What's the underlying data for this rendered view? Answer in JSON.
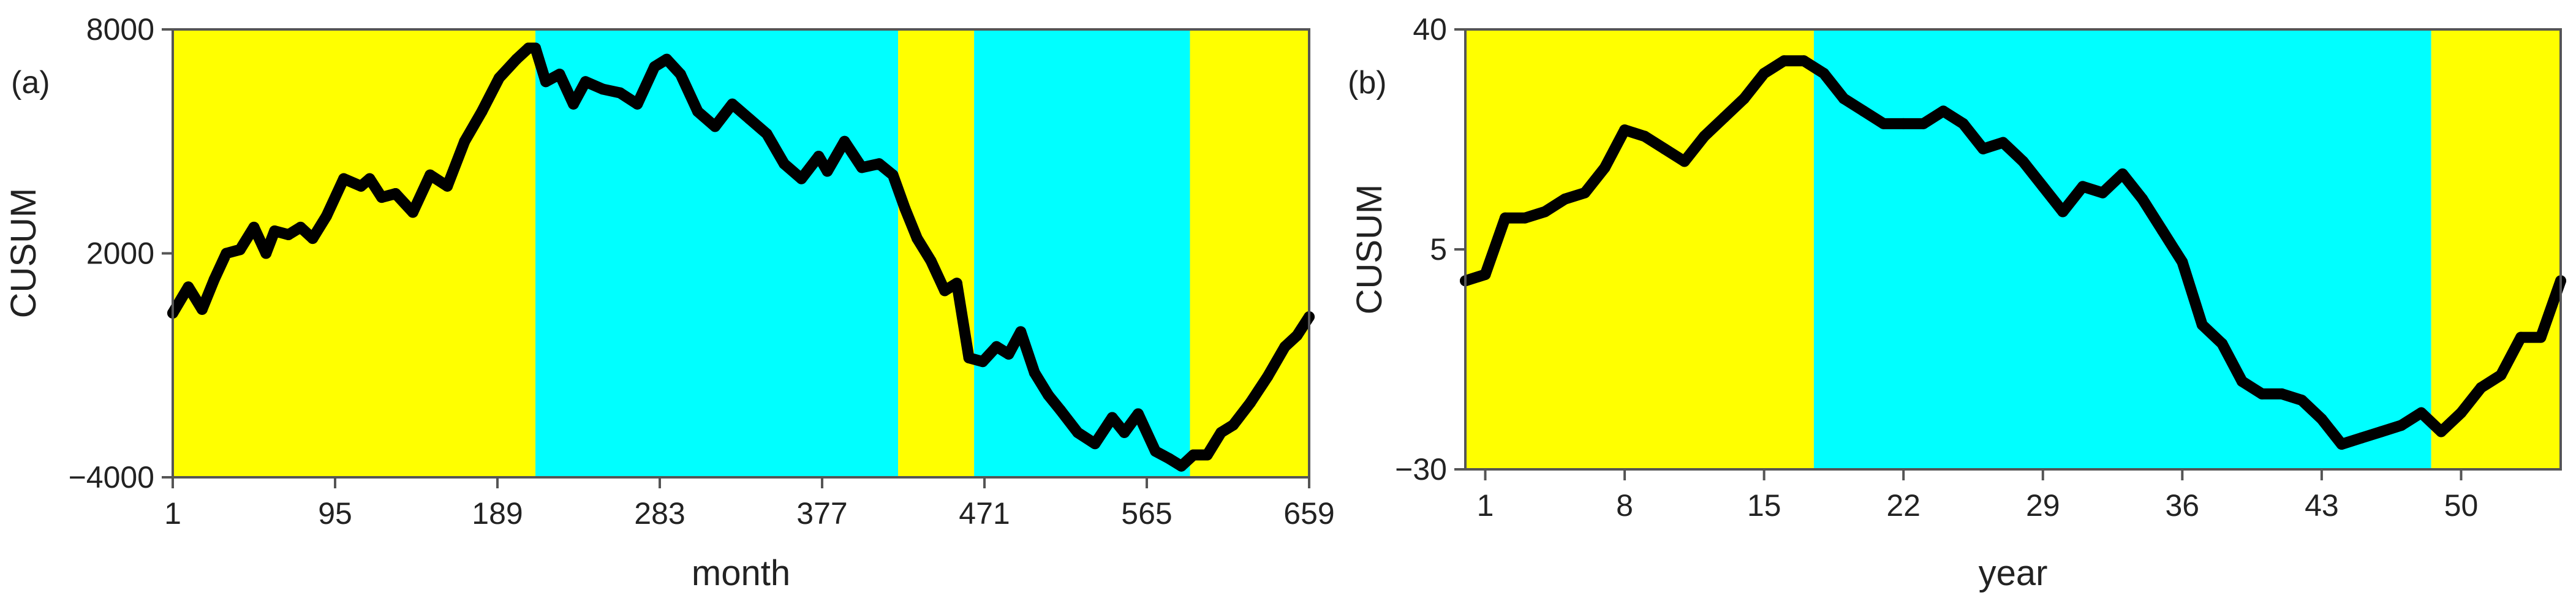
{
  "colors": {
    "yellow": "#ffff00",
    "cyan": "#00ffff",
    "line": "#000000",
    "frame": "#555555"
  },
  "chart_data": [
    {
      "type": "line",
      "panel_label": "(a)",
      "title": "",
      "xlabel": "month",
      "ylabel": "CUSUM",
      "xlim": [
        1,
        659
      ],
      "ylim": [
        -4000,
        8000
      ],
      "xticks": [
        1,
        95,
        189,
        283,
        377,
        471,
        565,
        659
      ],
      "yticks": [
        -4000,
        2000,
        8000
      ],
      "grid": false,
      "regimes": [
        {
          "start": 1,
          "end": 211,
          "color": "yellow"
        },
        {
          "start": 211,
          "end": 421,
          "color": "cyan"
        },
        {
          "start": 421,
          "end": 465,
          "color": "yellow"
        },
        {
          "start": 465,
          "end": 590,
          "color": "cyan"
        },
        {
          "start": 590,
          "end": 659,
          "color": "yellow"
        }
      ],
      "series": [
        {
          "x": [
            1,
            10,
            18,
            25,
            32,
            40,
            48,
            55,
            60,
            68,
            75,
            82,
            90,
            100,
            110,
            115,
            122,
            130,
            140,
            150,
            160,
            170,
            180,
            190,
            200,
            207,
            211,
            217,
            225,
            233,
            240,
            250,
            260,
            270,
            280,
            287,
            295,
            305,
            315,
            325,
            335,
            345,
            355,
            365,
            375,
            380,
            390,
            400,
            410,
            418,
            425,
            432,
            440,
            448,
            455,
            462,
            470,
            478,
            485,
            492,
            500,
            508,
            515,
            525,
            535,
            545,
            552,
            560,
            570,
            578,
            585,
            592,
            600,
            608,
            615,
            625,
            635,
            645,
            652,
            659
          ],
          "values": [
            400,
            1100,
            500,
            1300,
            2000,
            2100,
            2700,
            2000,
            2600,
            2500,
            2700,
            2400,
            3000,
            4000,
            3800,
            4000,
            3500,
            3600,
            3100,
            4100,
            3800,
            5000,
            5800,
            6700,
            7200,
            7500,
            7500,
            6600,
            6800,
            6000,
            6600,
            6400,
            6300,
            6000,
            7000,
            7200,
            6800,
            5800,
            5400,
            6000,
            5600,
            5200,
            4400,
            4000,
            4600,
            4200,
            5000,
            4300,
            4400,
            4100,
            3200,
            2400,
            1800,
            1000,
            1200,
            -800,
            -900,
            -500,
            -700,
            -100,
            -1200,
            -1800,
            -2200,
            -2800,
            -3100,
            -2400,
            -2800,
            -2300,
            -3300,
            -3500,
            -3700,
            -3400,
            -3400,
            -2800,
            -2600,
            -2000,
            -1300,
            -500,
            -200,
            300
          ]
        }
      ]
    },
    {
      "type": "line",
      "panel_label": "(b)",
      "title": "",
      "xlabel": "year",
      "ylabel": "CUSUM",
      "xlim": [
        0,
        55
      ],
      "ylim": [
        -30,
        40
      ],
      "xticks": [
        1,
        8,
        15,
        22,
        29,
        36,
        43,
        50
      ],
      "yticks": [
        -30,
        5,
        40
      ],
      "grid": false,
      "regimes": [
        {
          "start": 0,
          "end": 17.5,
          "color": "yellow"
        },
        {
          "start": 17.5,
          "end": 48.5,
          "color": "cyan"
        },
        {
          "start": 48.5,
          "end": 55,
          "color": "yellow"
        }
      ],
      "series": [
        {
          "x": [
            0,
            1,
            2,
            3,
            4,
            5,
            6,
            7,
            8,
            9,
            10,
            11,
            12,
            13,
            14,
            15,
            16,
            17,
            18,
            19,
            20,
            21,
            22,
            23,
            24,
            25,
            26,
            27,
            28,
            29,
            30,
            31,
            32,
            33,
            34,
            35,
            36,
            37,
            38,
            39,
            40,
            41,
            42,
            43,
            44,
            45,
            46,
            47,
            48,
            49,
            50,
            51,
            52,
            53,
            54,
            55
          ],
          "values": [
            0,
            1,
            10,
            10,
            11,
            13,
            14,
            18,
            24,
            23,
            21,
            19,
            23,
            26,
            29,
            33,
            35,
            35,
            33,
            29,
            27,
            25,
            25,
            25,
            27,
            25,
            21,
            22,
            19,
            15,
            11,
            15,
            14,
            17,
            13,
            8,
            3,
            -7,
            -10,
            -16,
            -18,
            -18,
            -19,
            -22,
            -26,
            -25,
            -24,
            -23,
            -21,
            -24,
            -21,
            -17,
            -15,
            -9,
            -9,
            0
          ]
        }
      ]
    }
  ]
}
